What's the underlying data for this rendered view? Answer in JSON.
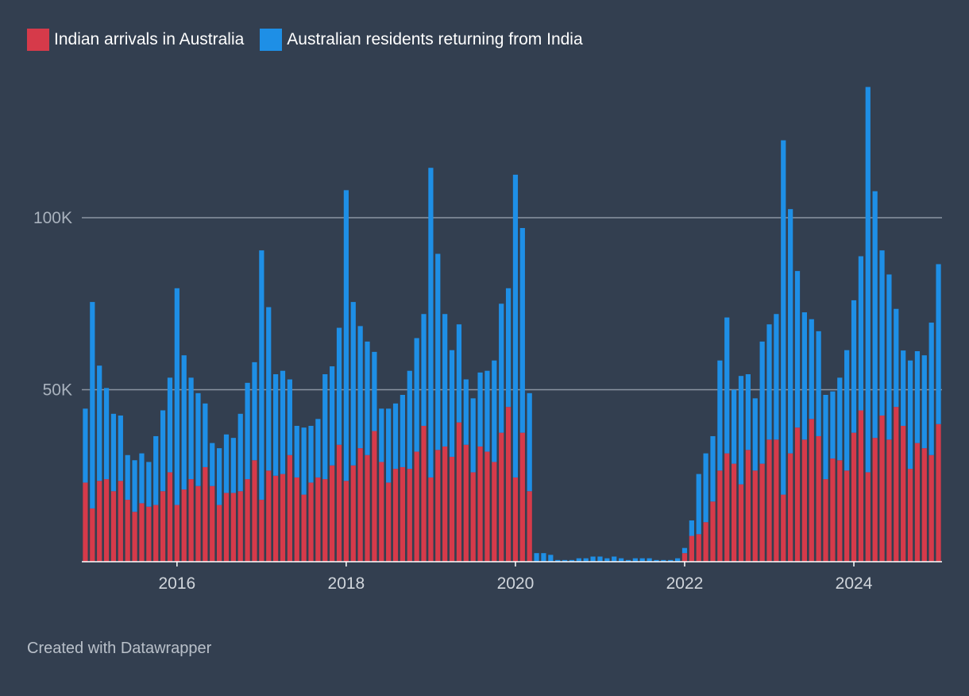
{
  "chart_data": {
    "type": "bar",
    "stacked": true,
    "title": "",
    "xlabel": "",
    "ylabel": "",
    "ylim": [
      0,
      140000
    ],
    "y_ticks": [
      {
        "value": 50000,
        "label": "50K"
      },
      {
        "value": 100000,
        "label": "100K"
      }
    ],
    "x_ticks": [
      {
        "index": 13,
        "label": "2016"
      },
      {
        "index": 37,
        "label": "2018"
      },
      {
        "index": 61,
        "label": "2020"
      },
      {
        "index": 85,
        "label": "2022"
      },
      {
        "index": 109,
        "label": "2024"
      }
    ],
    "start_period": "2014-12",
    "series": [
      {
        "name": "Indian arrivals in Australia",
        "color": "#d63a4a",
        "values": [
          23000,
          15500,
          23500,
          24000,
          20500,
          23500,
          18000,
          14500,
          17000,
          16000,
          16500,
          20500,
          26000,
          16500,
          21000,
          24000,
          22000,
          27500,
          22000,
          16500,
          20000,
          20000,
          20500,
          24000,
          29500,
          18000,
          26500,
          25000,
          25500,
          31000,
          24500,
          19500,
          23000,
          24500,
          24000,
          28000,
          34000,
          23500,
          28000,
          33000,
          31000,
          38000,
          29000,
          23000,
          27000,
          27500,
          27000,
          32000,
          39500,
          24500,
          32500,
          33500,
          30500,
          40500,
          34000,
          26000,
          33500,
          32000,
          29000,
          37500,
          45000,
          24500,
          37500,
          20500,
          0,
          0,
          0,
          0,
          0,
          0,
          0,
          0,
          0,
          0,
          0,
          0,
          0,
          0,
          0,
          0,
          0,
          0,
          0,
          0,
          0,
          2500,
          7500,
          8000,
          11500,
          17500,
          26500,
          31500,
          28500,
          22500,
          32500,
          26500,
          28500,
          35500,
          35500,
          19500,
          31500,
          39000,
          35500,
          41500,
          36500,
          24000,
          30000,
          29500,
          26500,
          37500,
          44000,
          26000,
          36000,
          42500,
          35500,
          45000,
          39500,
          27000,
          34500,
          33000,
          31000,
          40000
        ]
      },
      {
        "name": "Australian residents returning from India",
        "color": "#1e8fe6",
        "values": [
          21500,
          60000,
          33500,
          26500,
          22500,
          19000,
          13000,
          15000,
          14500,
          13000,
          20000,
          23500,
          27500,
          63000,
          39000,
          29500,
          27000,
          18500,
          12500,
          16500,
          17000,
          16000,
          22500,
          28000,
          28500,
          72500,
          47500,
          29500,
          30000,
          22000,
          15000,
          19500,
          16500,
          17000,
          30500,
          28800,
          34000,
          84500,
          47500,
          35500,
          33000,
          23000,
          15500,
          21500,
          19000,
          21000,
          28500,
          33000,
          32500,
          90000,
          57000,
          38500,
          31000,
          28500,
          19000,
          21500,
          21500,
          23500,
          29500,
          37500,
          34500,
          88000,
          59500,
          28500,
          2500,
          2500,
          2000,
          500,
          500,
          500,
          1000,
          1000,
          1500,
          1500,
          1000,
          1500,
          1000,
          500,
          1000,
          1000,
          1000,
          500,
          500,
          500,
          1000,
          1500,
          4500,
          17500,
          20000,
          19000,
          32000,
          39500,
          21500,
          31500,
          22000,
          21000,
          35500,
          33500,
          36500,
          103000,
          71000,
          45500,
          37000,
          29000,
          30500,
          24500,
          19500,
          24000,
          35000,
          38500,
          44800,
          112000,
          71700,
          48000,
          48000,
          28500,
          21900,
          31500,
          26700,
          27000,
          38500,
          46500
        ]
      }
    ]
  },
  "legend": {
    "items": [
      {
        "label": "Indian arrivals in Australia",
        "color": "#d63a4a"
      },
      {
        "label": "Australian residents returning from India",
        "color": "#1e8fe6"
      }
    ]
  },
  "footer": {
    "credit": "Created with Datawrapper"
  }
}
